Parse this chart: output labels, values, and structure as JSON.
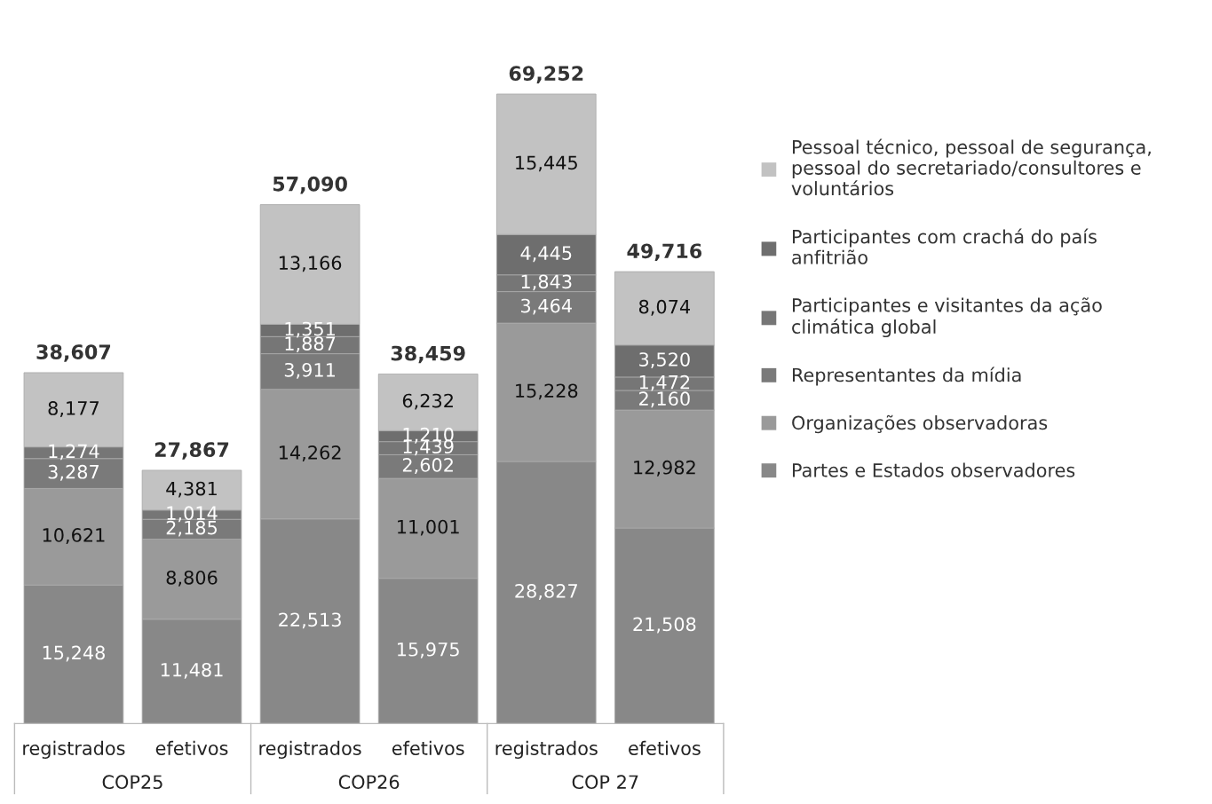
{
  "chart_data": {
    "type": "bar",
    "stacked": true,
    "tick_labels": "x",
    "categories": [
      "registrados",
      "efetivos",
      "registrados",
      "efetivos",
      "registrados",
      "efetivos"
    ],
    "series": [
      {
        "name": "Partes e Estados observadores",
        "color": "#888888",
        "values": [
          15248,
          11481,
          22513,
          15975,
          28827,
          21508
        ],
        "value_labels": [
          "15,248",
          "11,481",
          "22,513",
          "15,975",
          "28,827",
          "21,508"
        ]
      },
      {
        "name": "Organizações observadoras",
        "color": "#9a9a9a",
        "values": [
          10621,
          8806,
          14262,
          11001,
          15228,
          12982
        ],
        "value_labels": [
          "10,621",
          "8,806",
          "14,262",
          "11,001",
          "15,228",
          "12,982"
        ]
      },
      {
        "name": "Representantes da mídia",
        "color": "#7a7a7a",
        "values": [
          3287,
          2185,
          3911,
          2602,
          3464,
          2160
        ],
        "value_labels": [
          "3,287",
          "2,185",
          "3,911",
          "2,602",
          "3,464",
          "2,160"
        ]
      },
      {
        "name": "Participantes e visitantes da ação climática global",
        "color": "#767676",
        "values": [
          1274,
          1014,
          1887,
          1439,
          1843,
          1472
        ],
        "value_labels": [
          "1,274",
          "1,014",
          "1,887",
          "1,439",
          "1,843",
          "1,472"
        ]
      },
      {
        "name": "Participantes com crachá do país anfitrião",
        "color": "#6e6e6e",
        "values": [
          null,
          null,
          1351,
          1210,
          4445,
          3520
        ],
        "value_labels": [
          null,
          null,
          "1,351",
          "1,210",
          "4,445",
          "3,520"
        ]
      },
      {
        "name": "Pessoal técnico, pessoal de segurança, pessoal do secretariado/consultores e voluntários",
        "color": "#c2c2c2",
        "values": [
          8177,
          4381,
          13166,
          6232,
          15445,
          8074
        ],
        "value_labels": [
          "8,177",
          "4,381",
          "13,166",
          "6,232",
          "15,445",
          "8,074"
        ]
      }
    ],
    "totals": [
      "38,607",
      "27,867",
      "57,090",
      "38,459",
      "69,252",
      "49,716"
    ],
    "annotations": [
      "COP25",
      "COP26",
      "COP 27"
    ],
    "legend": "right",
    "grid": false
  }
}
